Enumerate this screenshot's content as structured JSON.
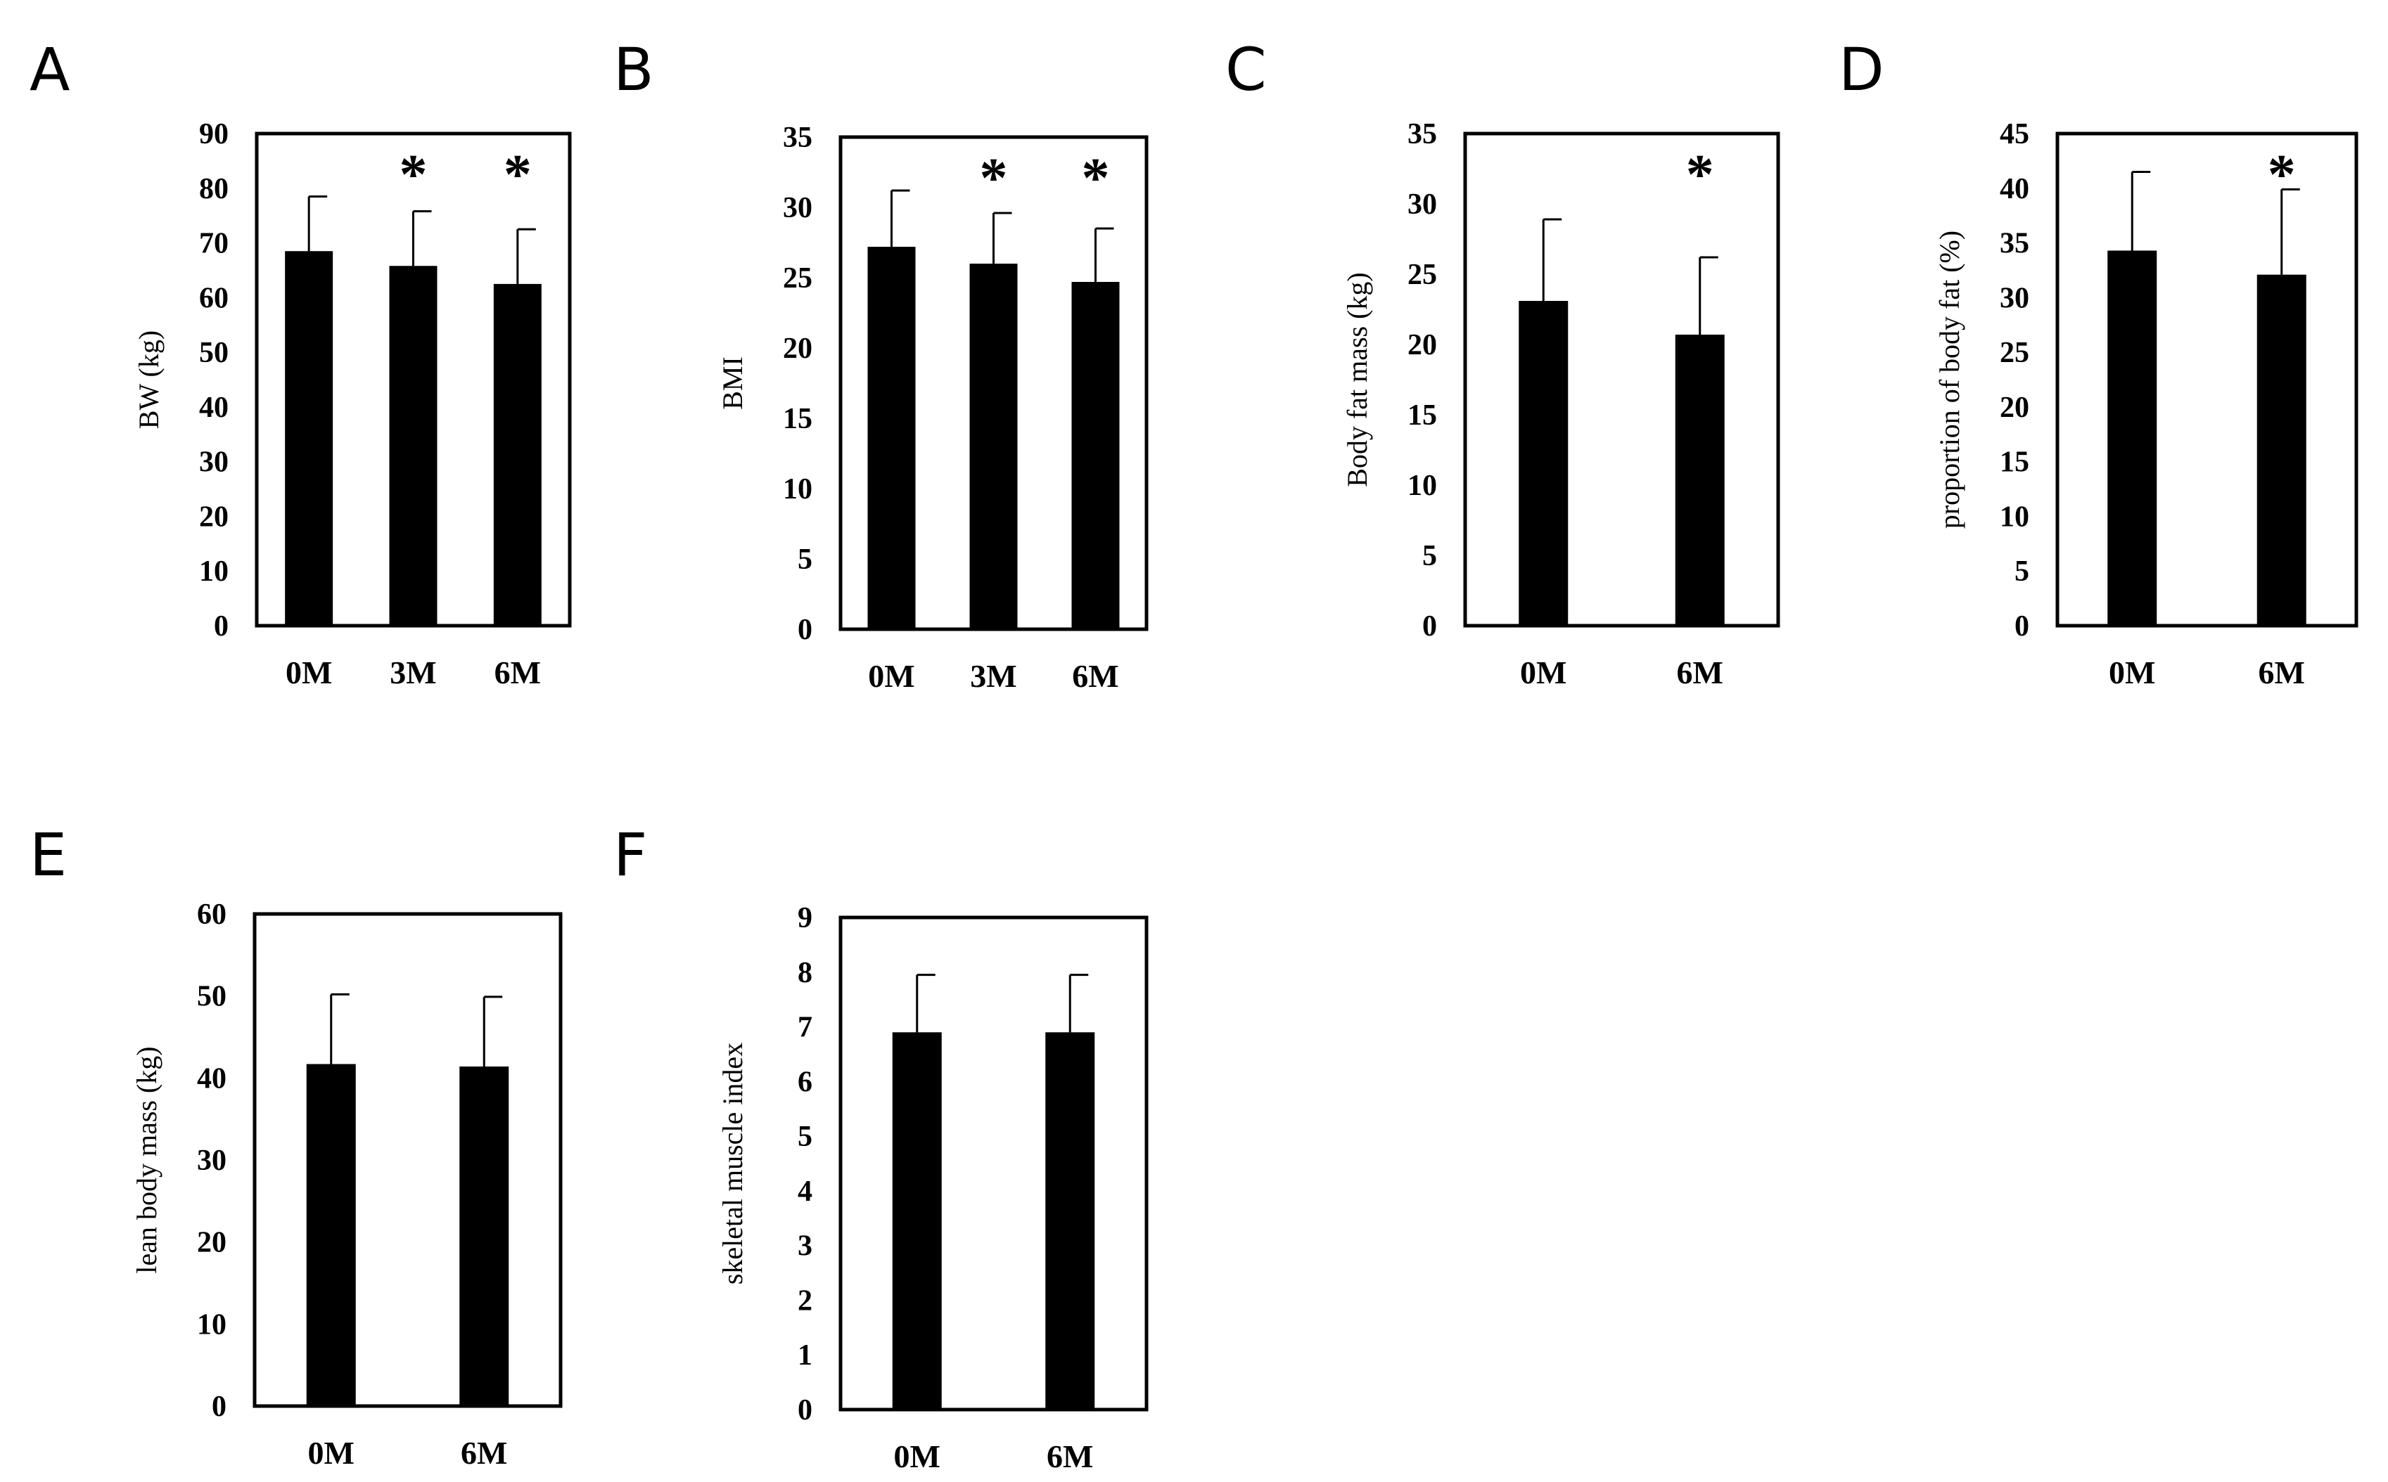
{
  "figure": {
    "background": "#ffffff",
    "ink": "#000000"
  },
  "chart_data": [
    {
      "panel": "A",
      "type": "bar",
      "ylabel": "BW (kg)",
      "ylim": [
        0,
        90
      ],
      "yticks": [
        0,
        10,
        20,
        30,
        40,
        50,
        60,
        70,
        80,
        90
      ],
      "categories": [
        "0M",
        "3M",
        "6M"
      ],
      "values": [
        68.5,
        65.8,
        62.5
      ],
      "errors": [
        10,
        10,
        10
      ],
      "significance": [
        "",
        "*",
        "*"
      ]
    },
    {
      "panel": "B",
      "type": "bar",
      "ylabel": "BMI",
      "ylim": [
        0,
        35
      ],
      "yticks": [
        0,
        5,
        10,
        15,
        20,
        25,
        30,
        35
      ],
      "categories": [
        "0M",
        "3M",
        "6M"
      ],
      "values": [
        27.2,
        26.0,
        24.7
      ],
      "errors": [
        4.0,
        3.6,
        3.8
      ],
      "significance": [
        "",
        "*",
        "*"
      ]
    },
    {
      "panel": "C",
      "type": "bar",
      "ylabel": "Body  fat mass  (kg)",
      "ylim": [
        0,
        35
      ],
      "yticks": [
        0,
        5,
        10,
        15,
        20,
        25,
        30,
        35
      ],
      "categories": [
        "0M",
        "6M"
      ],
      "values": [
        23.1,
        20.7
      ],
      "errors": [
        5.8,
        5.5
      ],
      "significance": [
        "",
        "*"
      ]
    },
    {
      "panel": "D",
      "type": "bar",
      "ylabel": "proportion of body fat (%)",
      "ylim": [
        0,
        45
      ],
      "yticks": [
        0,
        5,
        10,
        15,
        20,
        25,
        30,
        35,
        40,
        45
      ],
      "categories": [
        "0M",
        "6M"
      ],
      "values": [
        34.3,
        32.1
      ],
      "errors": [
        7.2,
        7.8
      ],
      "significance": [
        "",
        "*"
      ]
    },
    {
      "panel": "E",
      "type": "bar",
      "ylabel": "lean body mass (kg)",
      "ylim": [
        0,
        60
      ],
      "yticks": [
        0,
        10,
        20,
        30,
        40,
        50,
        60
      ],
      "categories": [
        "0M",
        "6M"
      ],
      "values": [
        41.7,
        41.4
      ],
      "errors": [
        8.5,
        8.5
      ],
      "significance": [
        "",
        ""
      ]
    },
    {
      "panel": "F",
      "type": "bar",
      "ylabel": "skeletal muscle index",
      "ylim": [
        0,
        9
      ],
      "yticks": [
        0,
        1,
        2,
        3,
        4,
        5,
        6,
        7,
        8,
        9
      ],
      "categories": [
        "0M",
        "6M"
      ],
      "values": [
        6.9,
        6.9
      ],
      "errors": [
        1.05,
        1.05
      ],
      "significance": [
        "",
        ""
      ]
    }
  ]
}
